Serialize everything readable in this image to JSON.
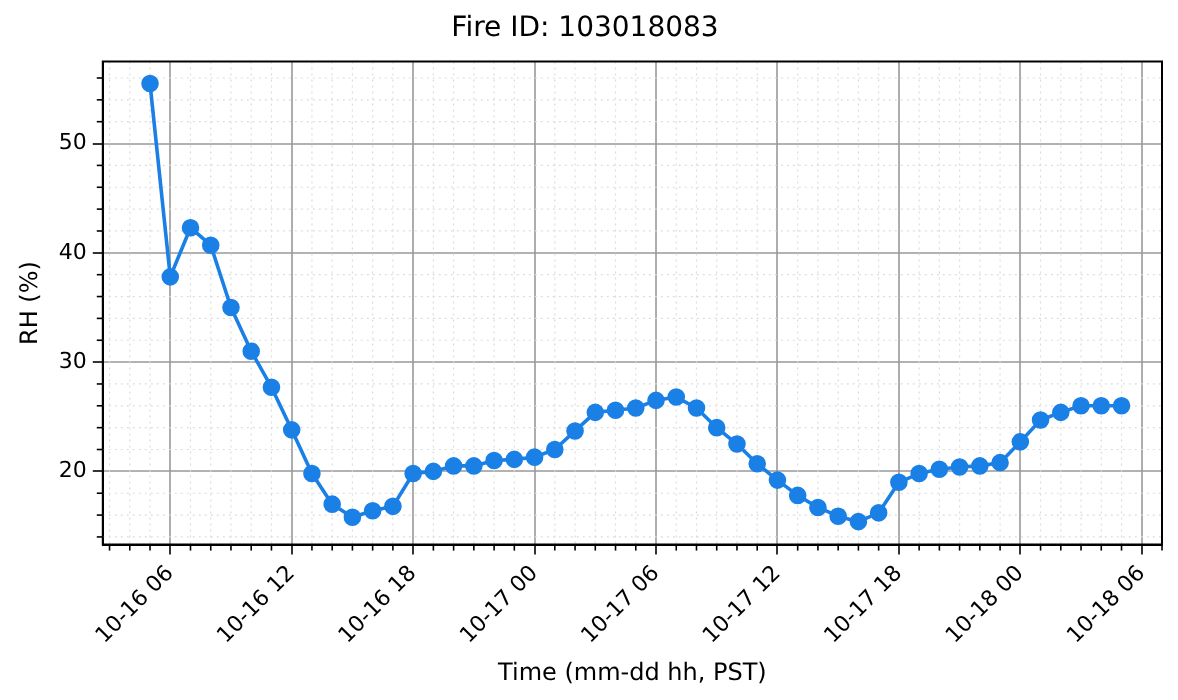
{
  "chart_data": {
    "type": "line",
    "title": "Fire ID: 103018083",
    "xlabel": "Time (mm-dd hh, PST)",
    "ylabel": "RH (%)",
    "x": [
      "--10-16T05:00",
      "--10-16T06:00",
      "--10-16T07:00",
      "--10-16T08:00",
      "--10-16T09:00",
      "--10-16T10:00",
      "--10-16T11:00",
      "--10-16T12:00",
      "--10-16T13:00",
      "--10-16T14:00",
      "--10-16T15:00",
      "--10-16T16:00",
      "--10-16T17:00",
      "--10-16T18:00",
      "--10-16T19:00",
      "--10-16T20:00",
      "--10-16T21:00",
      "--10-16T22:00",
      "--10-16T23:00",
      "--10-17T00:00",
      "--10-17T01:00",
      "--10-17T02:00",
      "--10-17T03:00",
      "--10-17T04:00",
      "--10-17T05:00",
      "--10-17T06:00",
      "--10-17T07:00",
      "--10-17T08:00",
      "--10-17T09:00",
      "--10-17T10:00",
      "--10-17T11:00",
      "--10-17T12:00",
      "--10-17T13:00",
      "--10-17T14:00",
      "--10-17T15:00",
      "--10-17T16:00",
      "--10-17T17:00",
      "--10-17T18:00",
      "--10-17T19:00",
      "--10-17T20:00",
      "--10-17T21:00",
      "--10-17T22:00",
      "--10-17T23:00",
      "--10-18T00:00",
      "--10-18T01:00",
      "--10-18T02:00",
      "--10-18T03:00",
      "--10-18T04:00",
      "--10-18T05:00"
    ],
    "series": [
      {
        "color": "#1a80e5",
        "values": [
          55.5,
          37.8,
          42.3,
          40.7,
          35,
          31,
          27.7,
          23.8,
          19.8,
          17,
          15.8,
          16.4,
          16.8,
          19.8,
          20,
          20.5,
          20.5,
          21,
          21.1,
          21.3,
          22,
          23.7,
          25.4,
          25.6,
          25.8,
          26.5,
          26.8,
          25.8,
          24,
          22.5,
          20.7,
          19.2,
          17.8,
          16.7,
          15.9,
          15.4,
          16.2,
          19,
          19.8,
          20.2,
          20.4,
          20.5,
          20.8,
          22.7,
          24.7,
          25.4,
          26,
          26,
          26
        ]
      }
    ],
    "xlim": [
      "--10-16T02:40",
      "--10-18T07:00"
    ],
    "ylim": [
      13.3,
      57.5
    ],
    "xticks": [
      {
        "value": "--10-16T06:00",
        "label": "10-16 06"
      },
      {
        "value": "--10-16T12:00",
        "label": "10-16 12"
      },
      {
        "value": "--10-16T18:00",
        "label": "10-16 18"
      },
      {
        "value": "--10-17T00:00",
        "label": "10-17 00"
      },
      {
        "value": "--10-17T06:00",
        "label": "10-17 06"
      },
      {
        "value": "--10-17T12:00",
        "label": "10-17 12"
      },
      {
        "value": "--10-17T18:00",
        "label": "10-17 18"
      },
      {
        "value": "--10-18T00:00",
        "label": "10-18 00"
      },
      {
        "value": "--10-18T06:00",
        "label": "10-18 06"
      }
    ],
    "yticks": [
      20,
      30,
      40,
      50
    ],
    "grid": true,
    "marker": "circle",
    "line_style": "solid",
    "legend": false
  }
}
